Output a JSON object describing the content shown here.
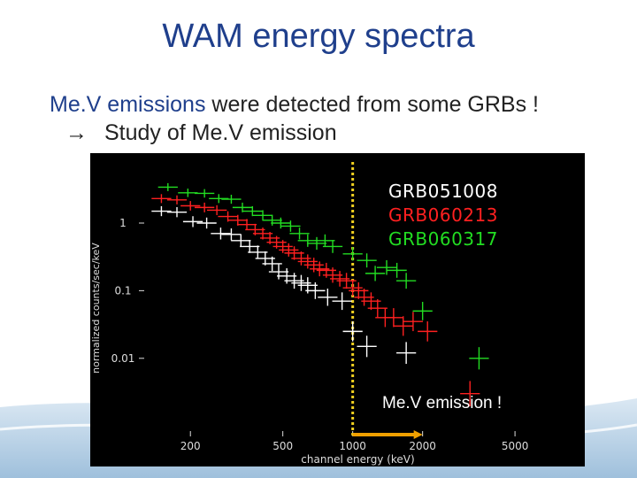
{
  "slide": {
    "title": "WAM energy spectra",
    "line1_highlight": "Me.V emissions",
    "line1_rest": " were detected from some GRBs !",
    "line2_arrow": "→",
    "line2_text": "Study of Me.V emission"
  },
  "chart_data": {
    "type": "scatter",
    "xlabel": "channel energy (keV)",
    "ylabel": "normalized counts/sec/keV",
    "xscale": "log",
    "yscale": "log",
    "xlim": [
      120,
      6500
    ],
    "ylim": [
      0.0007,
      8
    ],
    "xticks": [
      200,
      500,
      1000,
      2000,
      5000
    ],
    "xtick_labels": [
      "200",
      "500",
      "1000",
      "2000",
      "5000"
    ],
    "yticks": [
      1,
      0.1,
      0.01
    ],
    "ytick_labels": [
      "1",
      "0.1",
      "0.01"
    ],
    "background": "#000000",
    "legend_position": "top-right",
    "series": [
      {
        "name": "GRB051008",
        "color": "#ffffff",
        "points": [
          {
            "x": 150,
            "y": 1.5
          },
          {
            "x": 175,
            "y": 1.45
          },
          {
            "x": 205,
            "y": 1.05
          },
          {
            "x": 235,
            "y": 1.0
          },
          {
            "x": 270,
            "y": 0.7
          },
          {
            "x": 300,
            "y": 0.68
          },
          {
            "x": 330,
            "y": 0.55
          },
          {
            "x": 360,
            "y": 0.45
          },
          {
            "x": 390,
            "y": 0.37
          },
          {
            "x": 420,
            "y": 0.3
          },
          {
            "x": 450,
            "y": 0.25
          },
          {
            "x": 480,
            "y": 0.19
          },
          {
            "x": 520,
            "y": 0.165
          },
          {
            "x": 560,
            "y": 0.14
          },
          {
            "x": 600,
            "y": 0.13
          },
          {
            "x": 640,
            "y": 0.12
          },
          {
            "x": 690,
            "y": 0.1
          },
          {
            "x": 780,
            "y": 0.08
          },
          {
            "x": 900,
            "y": 0.07
          },
          {
            "x": 1000,
            "y": 0.025
          },
          {
            "x": 1150,
            "y": 0.015
          },
          {
            "x": 1700,
            "y": 0.012
          }
        ]
      },
      {
        "name": "GRB060213",
        "color": "#ff2020",
        "points": [
          {
            "x": 150,
            "y": 2.3
          },
          {
            "x": 175,
            "y": 2.2
          },
          {
            "x": 200,
            "y": 1.8
          },
          {
            "x": 230,
            "y": 1.7
          },
          {
            "x": 260,
            "y": 1.55
          },
          {
            "x": 290,
            "y": 1.25
          },
          {
            "x": 320,
            "y": 1.1
          },
          {
            "x": 350,
            "y": 0.95
          },
          {
            "x": 380,
            "y": 0.8
          },
          {
            "x": 410,
            "y": 0.7
          },
          {
            "x": 440,
            "y": 0.6
          },
          {
            "x": 470,
            "y": 0.52
          },
          {
            "x": 500,
            "y": 0.45
          },
          {
            "x": 530,
            "y": 0.4
          },
          {
            "x": 560,
            "y": 0.36
          },
          {
            "x": 600,
            "y": 0.3
          },
          {
            "x": 640,
            "y": 0.27
          },
          {
            "x": 680,
            "y": 0.24
          },
          {
            "x": 720,
            "y": 0.21
          },
          {
            "x": 770,
            "y": 0.2
          },
          {
            "x": 820,
            "y": 0.17
          },
          {
            "x": 880,
            "y": 0.15
          },
          {
            "x": 940,
            "y": 0.14
          },
          {
            "x": 1000,
            "y": 0.11
          },
          {
            "x": 1060,
            "y": 0.1
          },
          {
            "x": 1120,
            "y": 0.08
          },
          {
            "x": 1200,
            "y": 0.07
          },
          {
            "x": 1280,
            "y": 0.055
          },
          {
            "x": 1380,
            "y": 0.04
          },
          {
            "x": 1500,
            "y": 0.04
          },
          {
            "x": 1650,
            "y": 0.03
          },
          {
            "x": 1820,
            "y": 0.035
          },
          {
            "x": 2100,
            "y": 0.025
          },
          {
            "x": 3200,
            "y": 0.003
          }
        ]
      },
      {
        "name": "GRB060317",
        "color": "#22dd22",
        "points": [
          {
            "x": 160,
            "y": 3.4
          },
          {
            "x": 195,
            "y": 2.8
          },
          {
            "x": 230,
            "y": 2.75
          },
          {
            "x": 265,
            "y": 2.3
          },
          {
            "x": 300,
            "y": 2.25
          },
          {
            "x": 335,
            "y": 1.7
          },
          {
            "x": 370,
            "y": 1.5
          },
          {
            "x": 410,
            "y": 1.3
          },
          {
            "x": 450,
            "y": 1.1
          },
          {
            "x": 490,
            "y": 1.0
          },
          {
            "x": 540,
            "y": 0.9
          },
          {
            "x": 590,
            "y": 0.7
          },
          {
            "x": 640,
            "y": 0.55
          },
          {
            "x": 700,
            "y": 0.5
          },
          {
            "x": 760,
            "y": 0.55
          },
          {
            "x": 820,
            "y": 0.45
          },
          {
            "x": 1000,
            "y": 0.35
          },
          {
            "x": 1150,
            "y": 0.28
          },
          {
            "x": 1250,
            "y": 0.18
          },
          {
            "x": 1400,
            "y": 0.22
          },
          {
            "x": 1550,
            "y": 0.2
          },
          {
            "x": 1700,
            "y": 0.14
          },
          {
            "x": 2000,
            "y": 0.05
          },
          {
            "x": 3500,
            "y": 0.01
          }
        ]
      }
    ],
    "threshold_line": {
      "x": 1000,
      "color": "#f0d020"
    },
    "annotation": {
      "text": "Me.V emission !",
      "color": "#ffffff",
      "arrow_color": "#f0a000",
      "x_from": 1000,
      "x_to": 2000
    },
    "legend_colors": [
      "#ffffff",
      "#ff2020",
      "#22dd22"
    ]
  }
}
